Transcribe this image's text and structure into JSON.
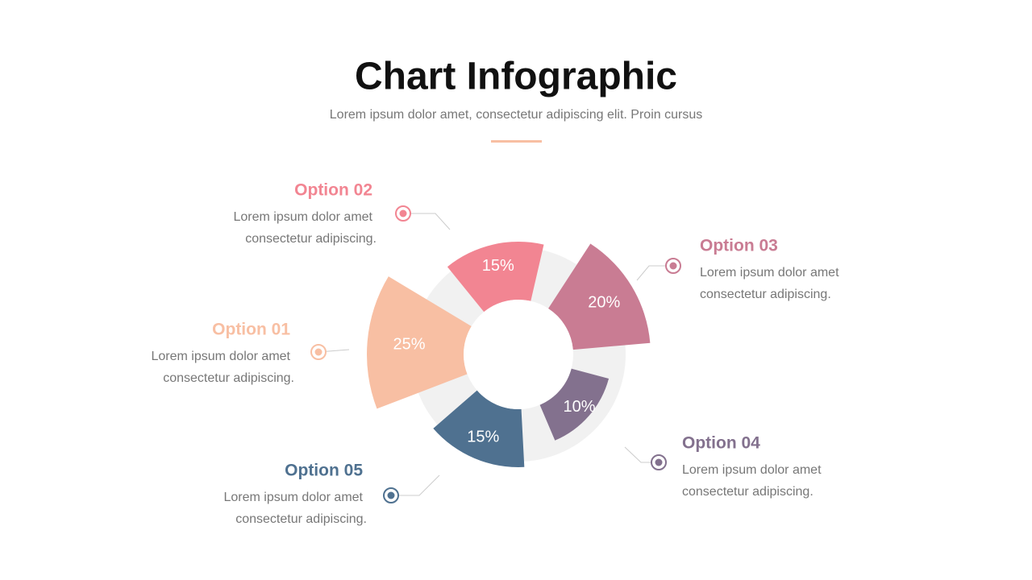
{
  "chart_data": {
    "type": "rose",
    "title": "Chart Infographic",
    "subtitle": "Lorem ipsum dolor amet, consectetur adipiscing elit. Proin cursus",
    "categories": [
      "Option 01",
      "Option 02",
      "Option 03",
      "Option 04",
      "Option 05"
    ],
    "values": [
      25,
      15,
      20,
      10,
      15
    ],
    "value_labels": [
      "25%",
      "15%",
      "20%",
      "10%",
      "15%"
    ],
    "colors": [
      "#f8bfa3",
      "#f28592",
      "#c97c93",
      "#83718e",
      "#4f7190"
    ],
    "descriptions": [
      [
        "Lorem ipsum dolor amet",
        "consectetur adipiscing."
      ],
      [
        "Lorem ipsum dolor amet",
        "consectetur adipiscing."
      ],
      [
        "Lorem ipsum dolor amet",
        "consectetur adipiscing."
      ],
      [
        "Lorem ipsum dolor amet",
        "consectetur adipiscing."
      ],
      [
        "Lorem ipsum dolor amet",
        "consectetur adipiscing."
      ]
    ]
  }
}
